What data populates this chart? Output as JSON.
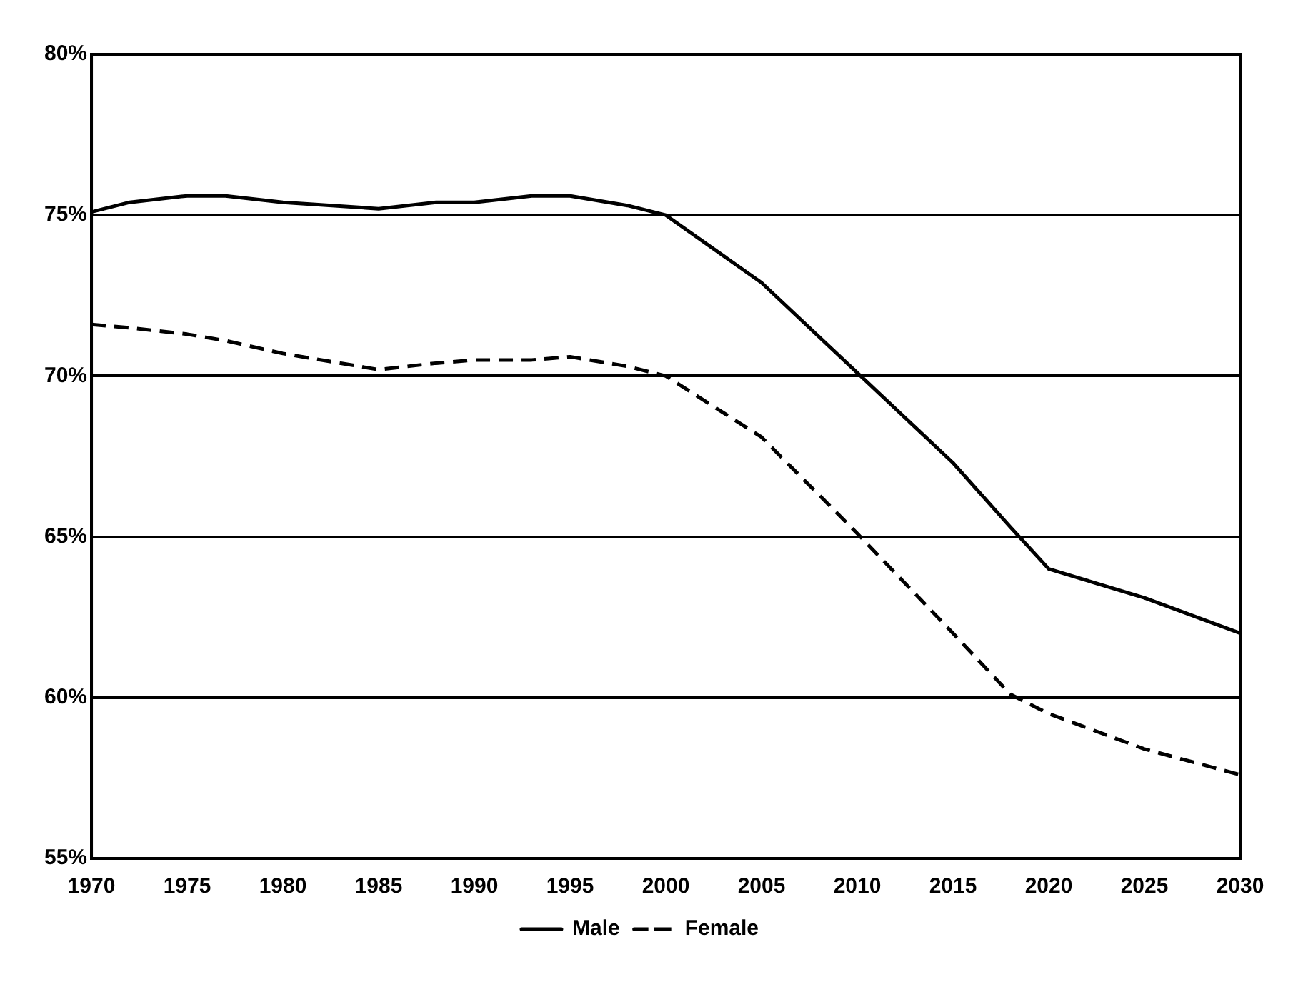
{
  "chart_data": {
    "type": "line",
    "x": [
      1970,
      1972,
      1975,
      1977,
      1980,
      1985,
      1988,
      1990,
      1993,
      1995,
      1998,
      2000,
      2005,
      2010,
      2015,
      2018,
      2020,
      2025,
      2030
    ],
    "series": [
      {
        "name": "Male",
        "color": "#000000",
        "line_style": "solid",
        "values": [
          75.1,
          75.4,
          75.6,
          75.6,
          75.4,
          75.2,
          75.4,
          75.4,
          75.6,
          75.6,
          75.3,
          75.0,
          72.9,
          70.1,
          67.3,
          65.3,
          64.0,
          63.1,
          62.0
        ]
      },
      {
        "name": "Female",
        "color": "#000000",
        "line_style": "dashed",
        "values": [
          71.6,
          71.5,
          71.3,
          71.1,
          70.7,
          70.2,
          70.4,
          70.5,
          70.5,
          70.6,
          70.3,
          70.0,
          68.1,
          65.1,
          62.0,
          60.1,
          59.5,
          58.4,
          57.6
        ]
      }
    ],
    "xlim": [
      1970,
      2030
    ],
    "xticks": [
      1970,
      1975,
      1980,
      1985,
      1990,
      1995,
      2000,
      2005,
      2010,
      2015,
      2020,
      2025,
      2030
    ],
    "ylim": [
      55,
      80
    ],
    "yticks": [
      {
        "value": 55,
        "label": "55%"
      },
      {
        "value": 60,
        "label": "60%"
      },
      {
        "value": 65,
        "label": "65%"
      },
      {
        "value": 70,
        "label": "70%"
      },
      {
        "value": 75,
        "label": "75%"
      },
      {
        "value": 80,
        "label": "80%"
      }
    ],
    "grid": "y",
    "legend": "bottom",
    "marker": "none"
  }
}
